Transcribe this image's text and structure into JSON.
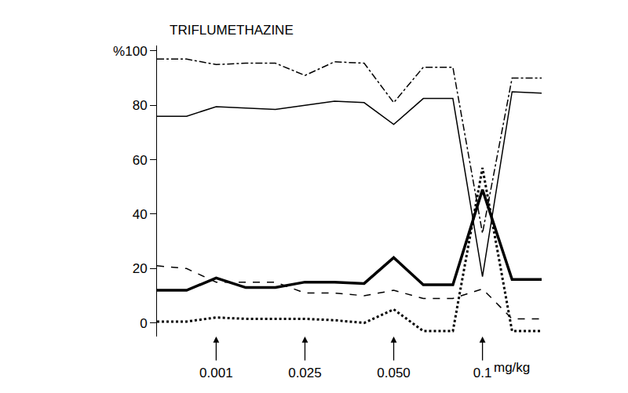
{
  "chart_data": {
    "type": "line",
    "title": "TRIFLUMETHAZINE",
    "x_label": "mg/kg",
    "categories": [
      null,
      null,
      "0.001",
      null,
      null,
      "0.025",
      null,
      null,
      "0.050",
      null,
      null,
      "0.1",
      null,
      null
    ],
    "series": [
      {
        "color": "#000000",
        "line_style": "dashdot",
        "values": [
          97,
          97,
          95,
          95.5,
          95.5,
          91,
          96,
          95.5,
          81,
          94,
          94,
          33,
          90,
          90
        ]
      },
      {
        "color": "#000000",
        "line_style": "solid",
        "values": [
          76,
          76,
          79.5,
          79,
          78.5,
          80,
          81.5,
          81,
          73,
          82.5,
          82.5,
          17,
          85,
          84.5
        ]
      },
      {
        "color": "#000000",
        "line_style": "dash",
        "values": [
          21,
          20,
          15,
          15,
          15,
          11,
          11,
          10,
          12,
          9,
          9,
          12.5,
          1.5,
          1.5
        ]
      },
      {
        "color": "#000000",
        "line_style": "thick",
        "values": [
          12,
          12,
          16.5,
          13,
          13,
          15,
          15,
          14.5,
          24,
          14,
          14,
          49,
          16,
          16
        ]
      },
      {
        "color": "#000000",
        "line_style": "dot",
        "values": [
          0.5,
          0.5,
          2,
          1.5,
          1.5,
          1.5,
          1,
          0,
          5,
          -3,
          -3,
          57,
          -3,
          -3
        ]
      }
    ],
    "ylim": [
      -5,
      102
    ],
    "yticks": [
      0,
      20,
      40,
      60,
      80,
      {
        "value": 100,
        "label": "%100"
      }
    ],
    "grid": false,
    "legend": "none",
    "tick_labels": true
  }
}
